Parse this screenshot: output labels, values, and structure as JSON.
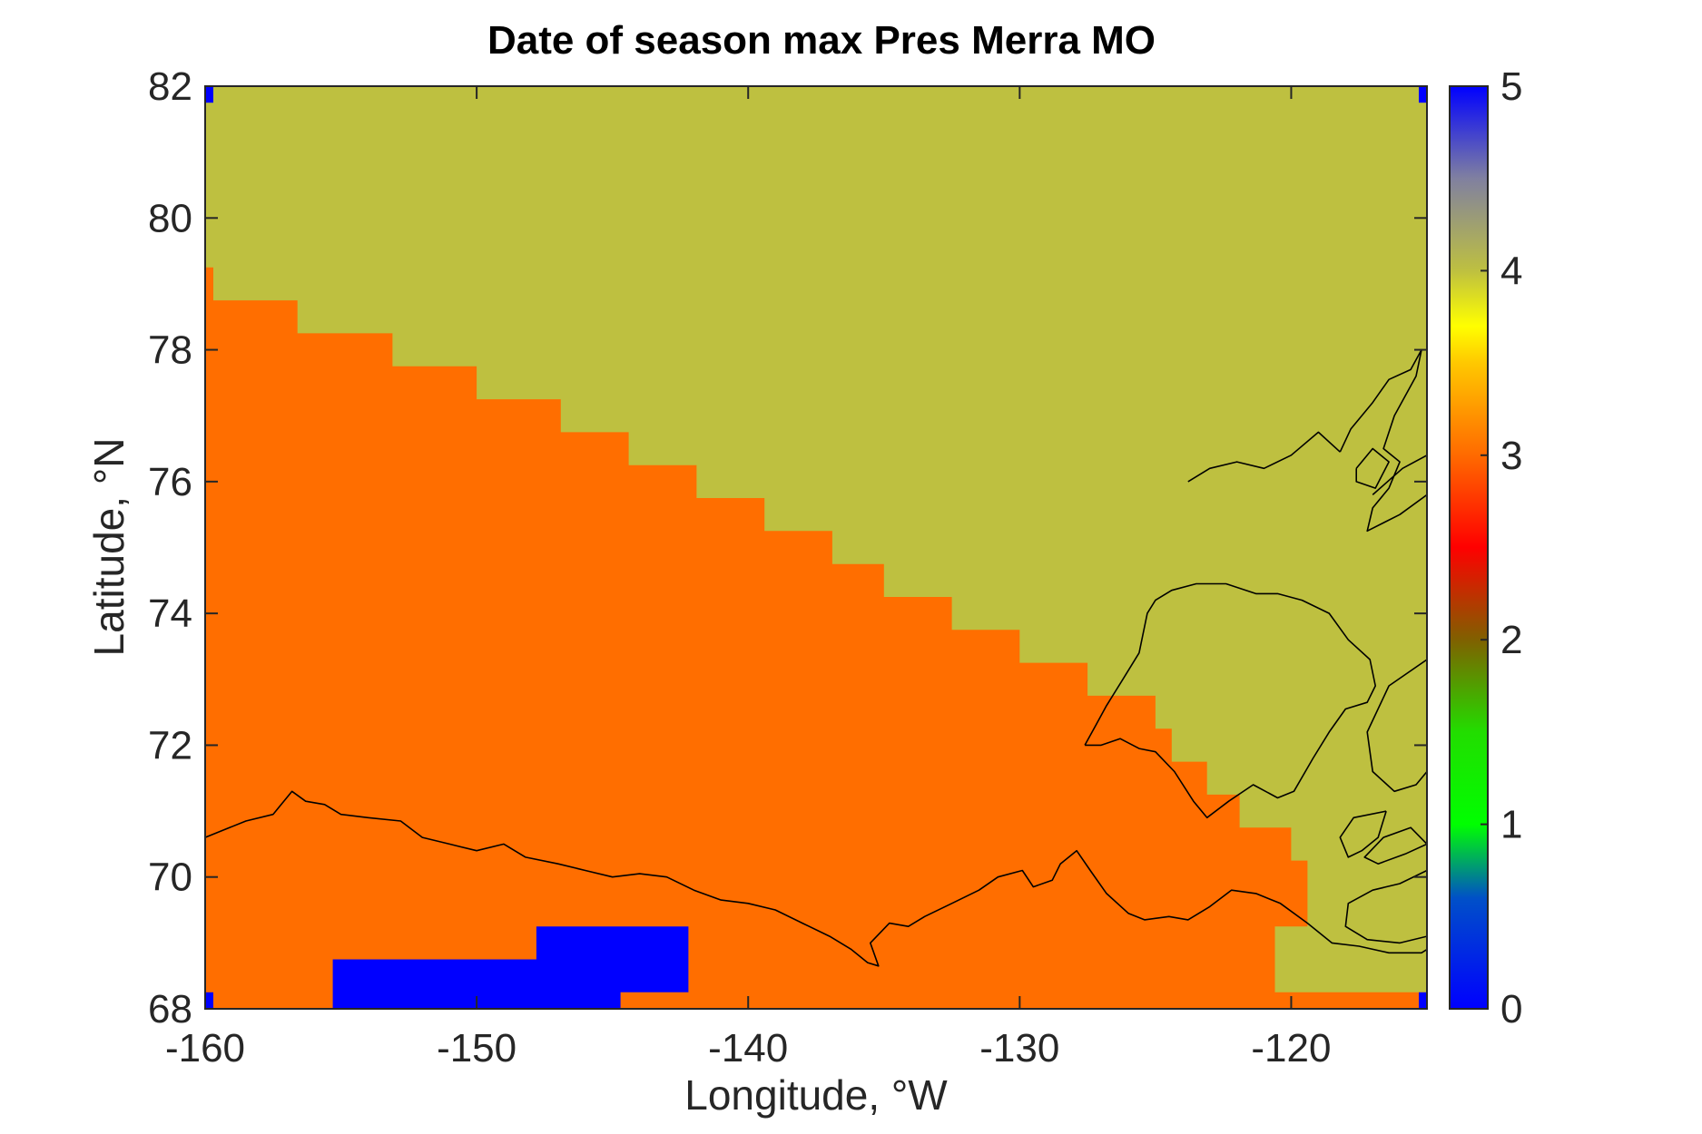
{
  "chart_data": {
    "type": "heatmap",
    "title": "Date of season max Pres Merra MO",
    "xlabel": "Longitude, °W",
    "ylabel": "Latitude, °N",
    "xlim": [
      -160,
      -115
    ],
    "ylim": [
      68,
      82
    ],
    "xticks": [
      -160,
      -150,
      -140,
      -130,
      -120
    ],
    "yticks": [
      68,
      70,
      72,
      74,
      76,
      78,
      80,
      82
    ],
    "colorbar": {
      "range": [
        0,
        5
      ],
      "ticks": [
        0,
        1,
        2,
        3,
        4,
        5
      ],
      "stops": [
        {
          "v": 0.0,
          "color": "#0000ff"
        },
        {
          "v": 0.6,
          "color": "#0050c8"
        },
        {
          "v": 1.0,
          "color": "#00ff00"
        },
        {
          "v": 1.5,
          "color": "#22dd00"
        },
        {
          "v": 2.0,
          "color": "#806000"
        },
        {
          "v": 2.5,
          "color": "#ff0000"
        },
        {
          "v": 3.0,
          "color": "#ff6a00"
        },
        {
          "v": 3.5,
          "color": "#ffc800"
        },
        {
          "v": 3.7,
          "color": "#ffff00"
        },
        {
          "v": 4.0,
          "color": "#bec040"
        },
        {
          "v": 4.5,
          "color": "#8080a0"
        },
        {
          "v": 5.0,
          "color": "#0000ff"
        }
      ]
    },
    "colors": {
      "value_3": "#ff6e00",
      "value_4": "#bec040",
      "value_0": "#0000ff"
    },
    "background_value": 4,
    "regions": [
      {
        "value": 3,
        "polygon": [
          [
            -160,
            79.25
          ],
          [
            -159.7,
            79.25
          ],
          [
            -159.7,
            78.75
          ],
          [
            -156.6,
            78.75
          ],
          [
            -156.6,
            78.25
          ],
          [
            -153.1,
            78.25
          ],
          [
            -153.1,
            77.75
          ],
          [
            -150.0,
            77.75
          ],
          [
            -150.0,
            77.25
          ],
          [
            -146.9,
            77.25
          ],
          [
            -146.9,
            76.75
          ],
          [
            -144.4,
            76.75
          ],
          [
            -144.4,
            76.25
          ],
          [
            -141.9,
            76.25
          ],
          [
            -141.9,
            75.75
          ],
          [
            -139.4,
            75.75
          ],
          [
            -139.4,
            75.25
          ],
          [
            -136.9,
            75.25
          ],
          [
            -136.9,
            74.75
          ],
          [
            -135.0,
            74.75
          ],
          [
            -135.0,
            74.25
          ],
          [
            -132.5,
            74.25
          ],
          [
            -132.5,
            73.75
          ],
          [
            -130.0,
            73.75
          ],
          [
            -130.0,
            73.25
          ],
          [
            -127.5,
            73.25
          ],
          [
            -127.5,
            72.75
          ],
          [
            -125.0,
            72.75
          ],
          [
            -125.0,
            72.25
          ],
          [
            -124.4,
            72.25
          ],
          [
            -124.4,
            71.75
          ],
          [
            -123.1,
            71.75
          ],
          [
            -123.1,
            71.25
          ],
          [
            -121.9,
            71.25
          ],
          [
            -121.9,
            70.75
          ],
          [
            -120.0,
            70.75
          ],
          [
            -120.0,
            70.25
          ],
          [
            -119.4,
            70.25
          ],
          [
            -119.4,
            69.25
          ],
          [
            -120.6,
            69.25
          ],
          [
            -120.6,
            68.25
          ],
          [
            -115,
            68.25
          ],
          [
            -115,
            68
          ],
          [
            -160,
            68
          ]
        ]
      },
      {
        "value": 0,
        "polygon": [
          [
            -155.3,
            68
          ],
          [
            -155.3,
            68.75
          ],
          [
            -147.8,
            68.75
          ],
          [
            -147.8,
            69.25
          ],
          [
            -142.2,
            69.25
          ],
          [
            -142.2,
            68.25
          ],
          [
            -144.7,
            68.25
          ],
          [
            -144.7,
            68
          ]
        ]
      },
      {
        "value": 0,
        "polygon": [
          [
            -160,
            82
          ],
          [
            -159.7,
            82
          ],
          [
            -159.7,
            81.75
          ],
          [
            -160,
            81.75
          ]
        ]
      },
      {
        "value": 0,
        "polygon": [
          [
            -115.3,
            82
          ],
          [
            -115,
            82
          ],
          [
            -115,
            81.75
          ],
          [
            -115.3,
            81.75
          ]
        ]
      },
      {
        "value": 0,
        "polygon": [
          [
            -160,
            68
          ],
          [
            -159.7,
            68
          ],
          [
            -159.7,
            68.25
          ],
          [
            -160,
            68.25
          ]
        ]
      },
      {
        "value": 0,
        "polygon": [
          [
            -115.3,
            68
          ],
          [
            -115,
            68
          ],
          [
            -115,
            68.25
          ],
          [
            -115.3,
            68.25
          ]
        ]
      }
    ],
    "coastlines": [
      [
        [
          -160,
          70.6
        ],
        [
          -158.5,
          70.85
        ],
        [
          -157.5,
          70.95
        ],
        [
          -156.8,
          71.3
        ],
        [
          -156.3,
          71.15
        ],
        [
          -155.6,
          71.1
        ],
        [
          -155.0,
          70.95
        ],
        [
          -154.0,
          70.9
        ],
        [
          -152.8,
          70.85
        ],
        [
          -152.0,
          70.6
        ],
        [
          -151.0,
          70.5
        ],
        [
          -150.0,
          70.4
        ],
        [
          -149.0,
          70.5
        ],
        [
          -148.2,
          70.3
        ],
        [
          -147.0,
          70.2
        ],
        [
          -146.0,
          70.1
        ],
        [
          -145.0,
          70.0
        ],
        [
          -144.0,
          70.05
        ],
        [
          -143.0,
          70.0
        ],
        [
          -142.0,
          69.8
        ],
        [
          -141.0,
          69.65
        ],
        [
          -140.0,
          69.6
        ],
        [
          -139.0,
          69.5
        ],
        [
          -138.0,
          69.3
        ],
        [
          -137.0,
          69.1
        ],
        [
          -136.2,
          68.9
        ],
        [
          -135.6,
          68.7
        ],
        [
          -135.2,
          68.65
        ],
        [
          -135.5,
          69.0
        ],
        [
          -134.8,
          69.3
        ],
        [
          -134.1,
          69.25
        ],
        [
          -133.5,
          69.4
        ],
        [
          -132.5,
          69.6
        ],
        [
          -131.5,
          69.8
        ],
        [
          -130.8,
          70.0
        ],
        [
          -129.9,
          70.1
        ],
        [
          -129.5,
          69.85
        ],
        [
          -128.8,
          69.95
        ],
        [
          -128.5,
          70.2
        ],
        [
          -127.9,
          70.4
        ],
        [
          -127.4,
          70.1
        ],
        [
          -126.8,
          69.75
        ],
        [
          -126.0,
          69.45
        ],
        [
          -125.4,
          69.35
        ],
        [
          -124.5,
          69.4
        ],
        [
          -123.8,
          69.35
        ],
        [
          -123.0,
          69.55
        ],
        [
          -122.2,
          69.8
        ],
        [
          -121.3,
          69.75
        ],
        [
          -120.4,
          69.6
        ],
        [
          -119.4,
          69.3
        ],
        [
          -118.5,
          69.0
        ],
        [
          -117.5,
          68.95
        ],
        [
          -116.4,
          68.85
        ],
        [
          -115.2,
          68.85
        ],
        [
          -115,
          68.9
        ]
      ],
      [
        [
          -127.6,
          72.0
        ],
        [
          -127.2,
          72.3
        ],
        [
          -126.8,
          72.6
        ],
        [
          -126.2,
          73.0
        ],
        [
          -125.6,
          73.4
        ],
        [
          -125.3,
          74.0
        ],
        [
          -125.0,
          74.2
        ],
        [
          -124.4,
          74.35
        ],
        [
          -123.5,
          74.45
        ],
        [
          -122.4,
          74.45
        ],
        [
          -121.3,
          74.3
        ],
        [
          -120.5,
          74.3
        ],
        [
          -119.6,
          74.2
        ],
        [
          -118.6,
          74.0
        ],
        [
          -117.9,
          73.6
        ],
        [
          -117.1,
          73.3
        ],
        [
          -116.9,
          72.9
        ],
        [
          -117.2,
          72.65
        ],
        [
          -118.0,
          72.55
        ],
        [
          -118.6,
          72.2
        ],
        [
          -119.2,
          71.8
        ],
        [
          -119.9,
          71.3
        ],
        [
          -120.5,
          71.2
        ],
        [
          -121.4,
          71.4
        ],
        [
          -122.3,
          71.15
        ],
        [
          -123.1,
          70.9
        ],
        [
          -123.6,
          71.15
        ],
        [
          -124.3,
          71.6
        ],
        [
          -125.0,
          71.9
        ],
        [
          -125.6,
          71.95
        ],
        [
          -126.3,
          72.1
        ],
        [
          -127.0,
          72.0
        ],
        [
          -127.6,
          72.0
        ]
      ],
      [
        [
          -115,
          73.3
        ],
        [
          -116.4,
          72.9
        ],
        [
          -117.2,
          72.2
        ],
        [
          -117.0,
          71.6
        ],
        [
          -116.2,
          71.3
        ],
        [
          -115.4,
          71.4
        ],
        [
          -115,
          71.6
        ]
      ],
      [
        [
          -115,
          70.1
        ],
        [
          -116.0,
          69.9
        ],
        [
          -117.0,
          69.8
        ],
        [
          -117.9,
          69.6
        ],
        [
          -118.0,
          69.25
        ],
        [
          -117.2,
          69.05
        ],
        [
          -116.0,
          69.0
        ],
        [
          -115,
          69.1
        ]
      ],
      [
        [
          -115,
          70.5
        ],
        [
          -115.6,
          70.75
        ],
        [
          -116.6,
          70.6
        ],
        [
          -117.3,
          70.3
        ],
        [
          -116.8,
          70.2
        ],
        [
          -115.8,
          70.35
        ],
        [
          -115,
          70.5
        ]
      ],
      [
        [
          -118.2,
          76.45
        ],
        [
          -117.8,
          76.8
        ],
        [
          -117.0,
          77.2
        ],
        [
          -116.4,
          77.55
        ],
        [
          -115.6,
          77.7
        ],
        [
          -115.2,
          78.0
        ],
        [
          -115.4,
          77.6
        ],
        [
          -116.2,
          77.0
        ],
        [
          -116.6,
          76.5
        ],
        [
          -116.0,
          76.3
        ],
        [
          -116.4,
          75.9
        ],
        [
          -117.0,
          75.6
        ],
        [
          -117.2,
          75.25
        ],
        [
          -116.0,
          75.5
        ],
        [
          -115,
          75.8
        ]
      ],
      [
        [
          -115,
          76.4
        ],
        [
          -115.9,
          76.2
        ],
        [
          -117.0,
          75.8
        ]
      ],
      [
        [
          -117.6,
          76.2
        ],
        [
          -117.0,
          76.5
        ],
        [
          -116.4,
          76.3
        ],
        [
          -116.9,
          75.9
        ],
        [
          -117.6,
          76.0
        ],
        [
          -117.6,
          76.2
        ]
      ],
      [
        [
          -123.8,
          76.0
        ],
        [
          -123.0,
          76.2
        ],
        [
          -122.0,
          76.3
        ],
        [
          -121.0,
          76.2
        ],
        [
          -120.0,
          76.4
        ],
        [
          -119.0,
          76.75
        ],
        [
          -118.2,
          76.45
        ]
      ],
      [
        [
          -116.5,
          71.0
        ],
        [
          -117.7,
          70.9
        ],
        [
          -118.2,
          70.6
        ],
        [
          -117.9,
          70.3
        ],
        [
          -117.4,
          70.4
        ],
        [
          -116.8,
          70.6
        ],
        [
          -116.5,
          71.0
        ]
      ]
    ]
  }
}
